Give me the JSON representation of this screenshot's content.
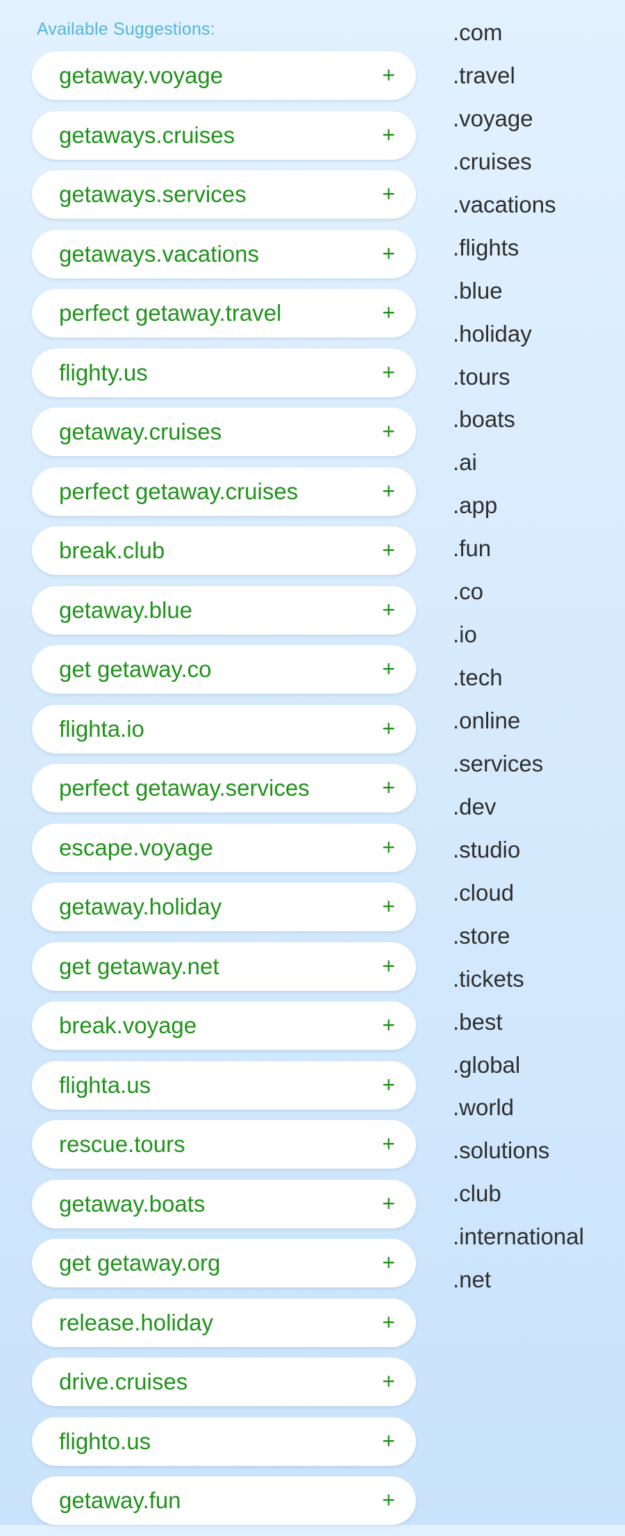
{
  "heading": "Available Suggestions:",
  "suggestions": [
    {
      "name": "getaway.voyage",
      "action": "+"
    },
    {
      "name": "getaways.cruises",
      "action": "+"
    },
    {
      "name": "getaways.services",
      "action": "+"
    },
    {
      "name": "getaways.vacations",
      "action": "+"
    },
    {
      "name": "perfect getaway.travel",
      "action": "+"
    },
    {
      "name": "flighty.us",
      "action": "+"
    },
    {
      "name": "getaway.cruises",
      "action": "+"
    },
    {
      "name": "perfect getaway.cruises",
      "action": "+"
    },
    {
      "name": "break.club",
      "action": "+"
    },
    {
      "name": "getaway.blue",
      "action": "+"
    },
    {
      "name": "get getaway.co",
      "action": "+"
    },
    {
      "name": "flighta.io",
      "action": "+"
    },
    {
      "name": "perfect getaway.services",
      "action": "+"
    },
    {
      "name": "escape.voyage",
      "action": "+"
    },
    {
      "name": "getaway.holiday",
      "action": "+"
    },
    {
      "name": "get getaway.net",
      "action": "+"
    },
    {
      "name": "break.voyage",
      "action": "+"
    },
    {
      "name": "flighta.us",
      "action": "+"
    },
    {
      "name": "rescue.tours",
      "action": "+"
    },
    {
      "name": "getaway.boats",
      "action": "+"
    },
    {
      "name": "get getaway.org",
      "action": "+"
    },
    {
      "name": "release.holiday",
      "action": "+"
    },
    {
      "name": "drive.cruises",
      "action": "+"
    },
    {
      "name": "flighto.us",
      "action": "+"
    },
    {
      "name": "getaway.fun",
      "action": "+"
    }
  ],
  "tlds": [
    ".com",
    ".travel",
    ".voyage",
    ".cruises",
    ".vacations",
    ".flights",
    ".blue",
    ".holiday",
    ".tours",
    ".boats",
    ".ai",
    ".app",
    ".fun",
    ".co",
    ".io",
    ".tech",
    ".online",
    ".services",
    ".dev",
    ".studio",
    ".cloud",
    ".store",
    ".tickets",
    ".best",
    ".global",
    ".world",
    ".solutions",
    ".club",
    ".international",
    ".net"
  ],
  "colors": {
    "heading": "#56b4de",
    "suggestion_text": "#1f921a",
    "tld_text": "#2e2e2e",
    "pill_background": "#ffffff",
    "page_background": "#d6eafc"
  }
}
